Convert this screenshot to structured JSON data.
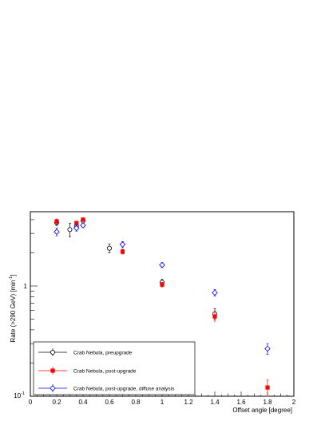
{
  "chart_data": {
    "type": "scatter",
    "xlabel": "Offset angle [degree]",
    "ylabel_main": "Rate (>290 GeV) [min",
    "ylabel_sup": "-1",
    "ylabel_tail": "]",
    "xlim": [
      0,
      2
    ],
    "ylim": [
      0.1,
      5.5
    ],
    "y_log": true,
    "x_ticks": [
      "0",
      "0.2",
      "0.4",
      "0.6",
      "0.8",
      "1",
      "1.2",
      "1.4",
      "1.6",
      "1.8",
      "2"
    ],
    "y_tick_1": "1",
    "y_tick_10_base": "10",
    "y_tick_10_exp": "-1",
    "legend_position": "bottom-left",
    "series": [
      {
        "name": "Crab Nebula, preupgrade",
        "color": "#000000",
        "marker": "open-circle",
        "points": [
          {
            "x": 0.2,
            "y": 3.75,
            "err": 0.2
          },
          {
            "x": 0.3,
            "y": 3.25,
            "err": 0.45
          },
          {
            "x": 0.35,
            "y": 3.5,
            "err": 0.25
          },
          {
            "x": 0.4,
            "y": 3.9,
            "err": 0.18
          },
          {
            "x": 0.6,
            "y": 2.2,
            "err": 0.2
          },
          {
            "x": 1.0,
            "y": 1.08,
            "err": 0.07
          },
          {
            "x": 1.4,
            "y": 0.56,
            "err": 0.06
          }
        ]
      },
      {
        "name": "Crab Nebula, post-upgrade",
        "color": "#ff0000",
        "marker": "filled-square",
        "points": [
          {
            "x": 0.2,
            "y": 3.85,
            "err": 0.2
          },
          {
            "x": 0.35,
            "y": 3.72,
            "err": 0.15
          },
          {
            "x": 0.4,
            "y": 4.0,
            "err": 0.15
          },
          {
            "x": 0.7,
            "y": 2.05,
            "err": 0.1
          },
          {
            "x": 1.0,
            "y": 1.03,
            "err": 0.05
          },
          {
            "x": 1.4,
            "y": 0.53,
            "err": 0.05
          },
          {
            "x": 1.8,
            "y": 0.12,
            "err": 0.02
          }
        ]
      },
      {
        "name": "Crab Nebula, post-upgrade, diffuse analysis",
        "color": "#0000ff",
        "marker": "open-diamond",
        "points": [
          {
            "x": 0.2,
            "y": 3.1,
            "err": 0.25
          },
          {
            "x": 0.35,
            "y": 3.35,
            "err": 0.2
          },
          {
            "x": 0.4,
            "y": 3.55,
            "err": 0.15
          },
          {
            "x": 0.7,
            "y": 2.38,
            "err": 0.15
          },
          {
            "x": 1.0,
            "y": 1.55,
            "err": 0.08
          },
          {
            "x": 1.4,
            "y": 0.87,
            "err": 0.06
          },
          {
            "x": 1.8,
            "y": 0.27,
            "err": 0.03
          }
        ]
      }
    ]
  }
}
